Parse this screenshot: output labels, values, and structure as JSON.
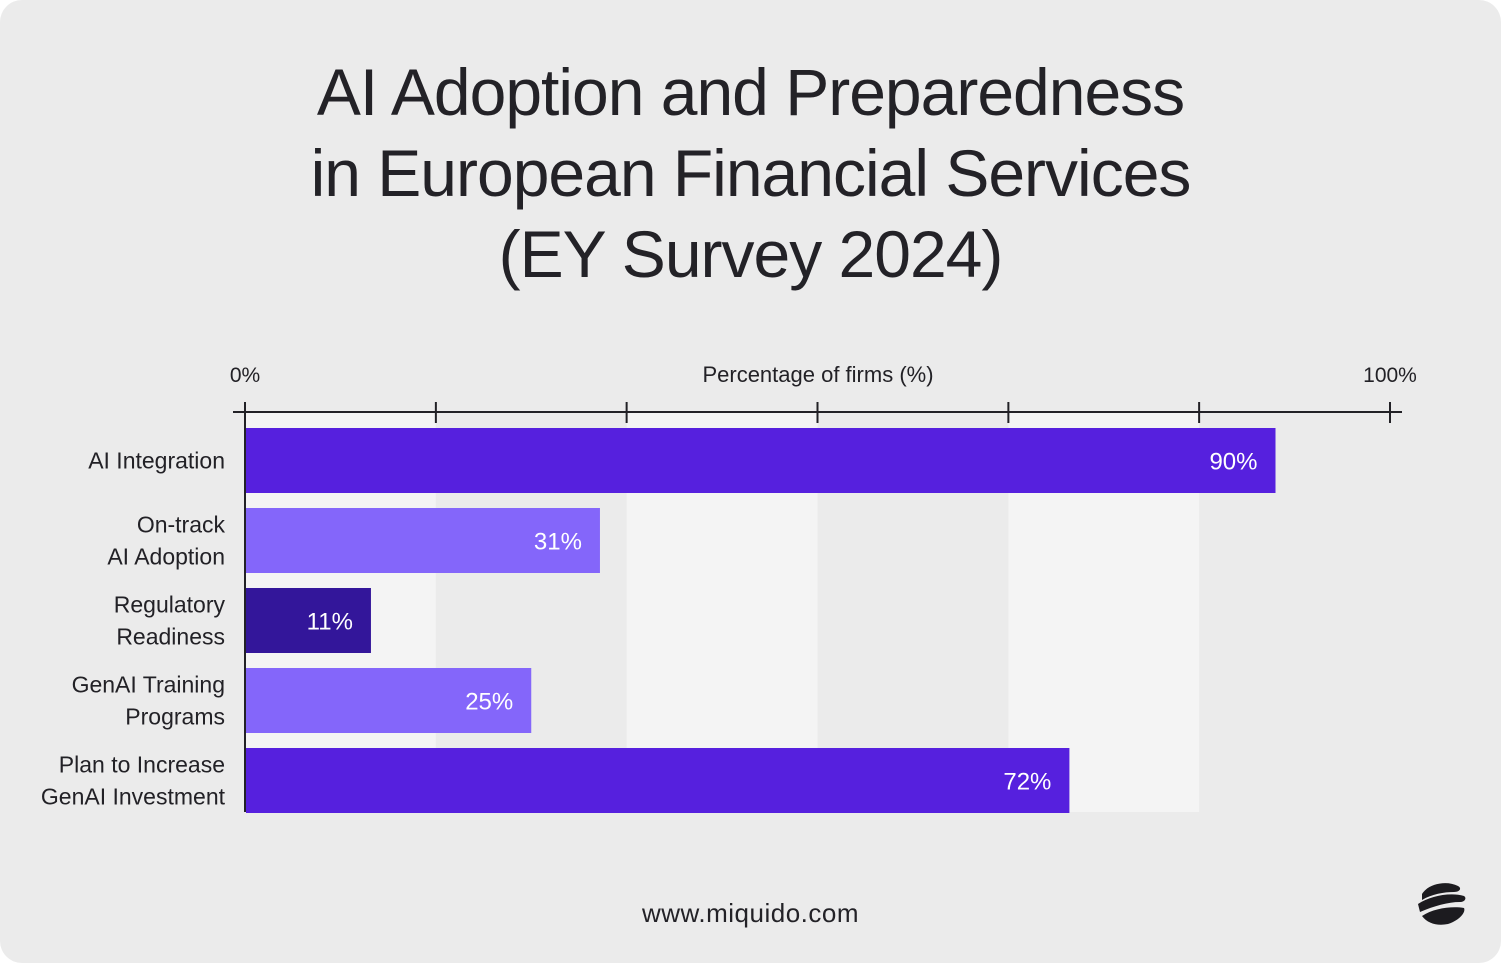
{
  "page": {
    "footer_url": "www.miquido.com",
    "logo_icon": "miquido-logo-icon"
  },
  "chart_data": {
    "type": "bar",
    "orientation": "horizontal",
    "title_lines": [
      "AI Adoption and Preparedness",
      "in European Financial Services",
      "(EY Survey 2024)"
    ],
    "xlabel": "Percentage of firms (%)",
    "xlim": [
      0,
      100
    ],
    "x_tick_labels": [
      {
        "value": 0,
        "label": "0%"
      },
      {
        "value": 100,
        "label": "100%"
      }
    ],
    "x_tick_values": [
      0,
      16.67,
      33.33,
      50,
      66.67,
      83.33,
      100
    ],
    "categories": [
      [
        "AI Integration"
      ],
      [
        "On-track",
        "AI Adoption"
      ],
      [
        "Regulatory",
        "Readiness"
      ],
      [
        "GenAI Training",
        "Programs"
      ],
      [
        "Plan to Increase",
        "GenAI Investment"
      ]
    ],
    "values": [
      90,
      31,
      11,
      25,
      72
    ],
    "value_labels": [
      "90%",
      "31%",
      "11%",
      "25%",
      "72%"
    ],
    "bar_colors": [
      "#5620de",
      "#8466fa",
      "#33169a",
      "#8466fa",
      "#5620de"
    ],
    "grid": "alternating vertical bands",
    "band_colors": [
      "#f4f4f4",
      "#ebebeb"
    ],
    "axis_position": "top"
  }
}
